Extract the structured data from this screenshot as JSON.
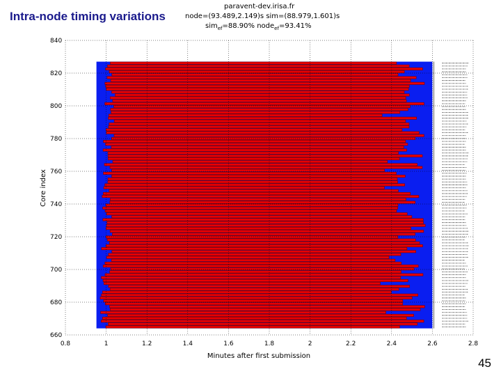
{
  "slide": {
    "title": "Intra-node timing variations",
    "page_number": "45"
  },
  "plot_header": {
    "host": "paravent-dev.irisa.fr",
    "line2": "node=(93.489,2.149)s sim=(88.979,1.601)s",
    "line3_sim": "sim",
    "line3_sim_sub": "ef",
    "line3_sim_val": "=88.90% node",
    "line3_node_sub": "ef",
    "line3_node_val": "=93.41%"
  },
  "chart_data": {
    "type": "bar",
    "orientation": "horizontal-ranges",
    "xlabel": "Minutes after first submission",
    "ylabel": "Core index",
    "xlim": [
      0.8,
      2.8
    ],
    "ylim": [
      660,
      840
    ],
    "x_ticks": [
      "0.8",
      "1",
      "1.2",
      "1.4",
      "1.6",
      "1.8",
      "2",
      "2.2",
      "2.4",
      "2.6",
      "2.8"
    ],
    "y_ticks": [
      "660",
      "680",
      "700",
      "720",
      "740",
      "760",
      "780",
      "800",
      "820",
      "840"
    ],
    "node_range": [
      1.0,
      2.6
    ],
    "core_range": [
      664,
      827
    ],
    "colors": {
      "node": "#0a1ef0",
      "task": "#e80000",
      "task_edge": "#7a0000",
      "grid": "#000000"
    },
    "side_labels": "per-core job identifiers (illegible)"
  }
}
